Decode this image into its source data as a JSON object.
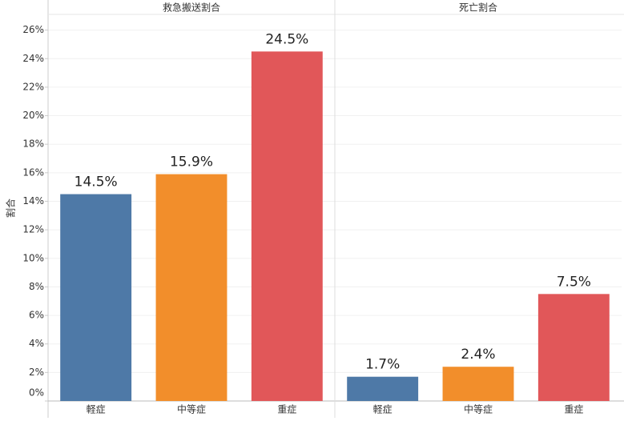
{
  "chart_data": {
    "type": "bar",
    "y_label": "割合",
    "ylim": [
      0,
      27.1
    ],
    "yticks": [
      {
        "value": 0,
        "label": "0%"
      },
      {
        "value": 2,
        "label": "2%"
      },
      {
        "value": 4,
        "label": "4%"
      },
      {
        "value": 6,
        "label": "6%"
      },
      {
        "value": 8,
        "label": "8%"
      },
      {
        "value": 10,
        "label": "10%"
      },
      {
        "value": 12,
        "label": "12%"
      },
      {
        "value": 14,
        "label": "14%"
      },
      {
        "value": 16,
        "label": "16%"
      },
      {
        "value": 18,
        "label": "18%"
      },
      {
        "value": 20,
        "label": "20%"
      },
      {
        "value": 22,
        "label": "22%"
      },
      {
        "value": 24,
        "label": "24%"
      },
      {
        "value": 26,
        "label": "26%"
      }
    ],
    "grid": true,
    "colors": [
      "#4e79a7",
      "#f28e2b",
      "#e15759"
    ],
    "facets": [
      {
        "title": "救急搬送割合",
        "categories": [
          "軽症",
          "中等症",
          "重症"
        ],
        "values": [
          14.5,
          15.9,
          24.5
        ],
        "value_labels": [
          "14.5%",
          "15.9%",
          "24.5%"
        ]
      },
      {
        "title": "死亡割合",
        "categories": [
          "軽症",
          "中等症",
          "重症"
        ],
        "values": [
          1.7,
          2.4,
          7.5
        ],
        "value_labels": [
          "1.7%",
          "2.4%",
          "7.5%"
        ]
      }
    ]
  }
}
